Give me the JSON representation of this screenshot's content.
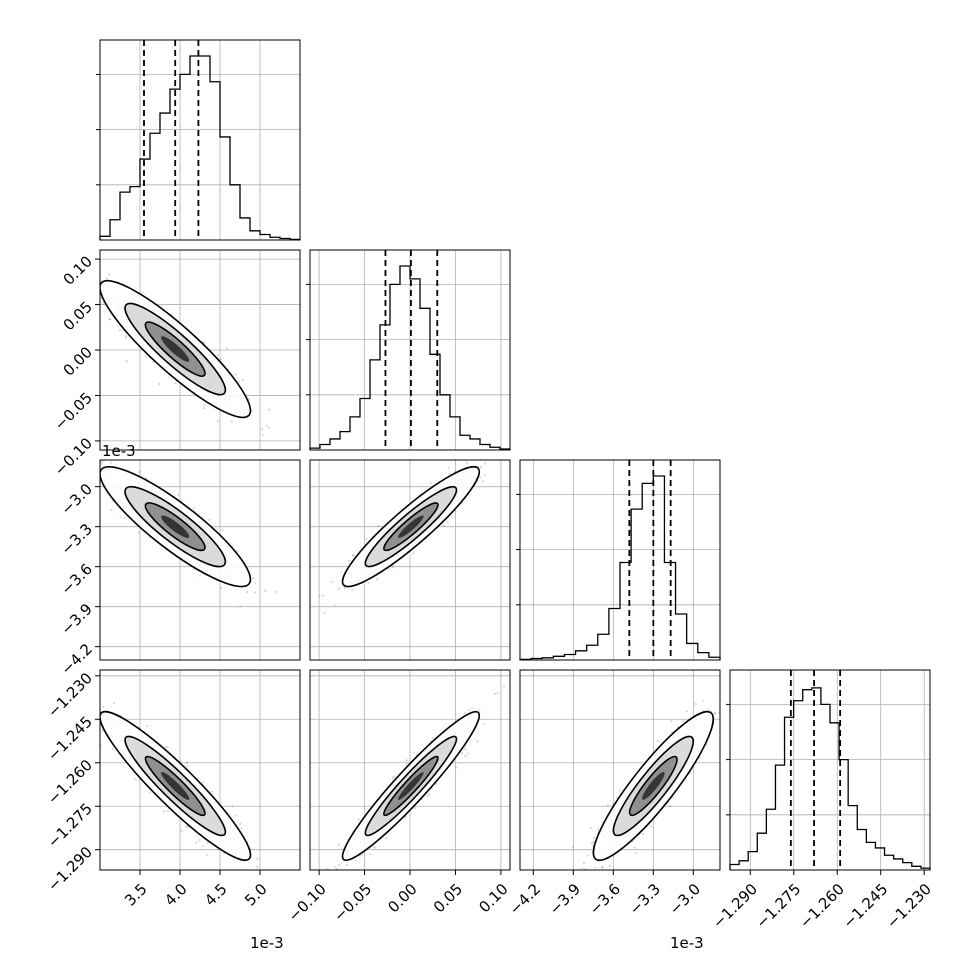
{
  "chart_data": {
    "type": "corner",
    "title": "",
    "grid": true,
    "parameters": [
      {
        "range": [
          3.0,
          5.5
        ],
        "scale": "1e-3",
        "offset_label": "1e-3",
        "ticks": [
          3.5,
          4.0,
          4.5,
          5.0
        ],
        "tick_labels": [
          "3.5",
          "4.0",
          "4.5",
          "5.0"
        ],
        "quantiles": [
          3.55,
          3.94,
          4.23
        ],
        "hist": [
          0.02,
          0.11,
          0.26,
          0.29,
          0.44,
          0.58,
          0.69,
          0.82,
          0.9,
          1.0,
          1.0,
          0.86,
          0.56,
          0.3,
          0.12,
          0.05,
          0.03,
          0.015,
          0.008,
          0.003
        ]
      },
      {
        "range": [
          -0.11,
          0.11
        ],
        "scale": "",
        "ticks": [
          -0.1,
          -0.05,
          0.0,
          0.05,
          0.1
        ],
        "tick_labels": [
          "−0.10",
          "−0.05",
          "0.00",
          "0.05",
          "0.10"
        ],
        "quantiles": [
          -0.027,
          0.001,
          0.03
        ],
        "hist": [
          0.01,
          0.03,
          0.06,
          0.1,
          0.18,
          0.28,
          0.49,
          0.68,
          0.9,
          1.0,
          0.93,
          0.77,
          0.52,
          0.3,
          0.18,
          0.08,
          0.06,
          0.03,
          0.015,
          0.005
        ]
      },
      {
        "range": [
          -4.3,
          -2.8
        ],
        "scale": "1e-3",
        "offset_label": "1e-3",
        "ticks": [
          -4.2,
          -3.9,
          -3.6,
          -3.3,
          -3.0
        ],
        "tick_labels": [
          "−4.2",
          "−3.9",
          "−3.6",
          "−3.3",
          "−3.0"
        ],
        "quantiles": [
          -3.48,
          -3.3,
          -3.17
        ],
        "hist": [
          0.003,
          0.008,
          0.012,
          0.02,
          0.03,
          0.05,
          0.08,
          0.14,
          0.28,
          0.53,
          0.82,
          0.96,
          1.0,
          0.53,
          0.25,
          0.09,
          0.04,
          0.015
        ]
      },
      {
        "range": [
          -1.297,
          -1.228
        ],
        "scale": "",
        "ticks": [
          -1.29,
          -1.275,
          -1.26,
          -1.245,
          -1.23
        ],
        "tick_labels": [
          "−1.290",
          "−1.275",
          "−1.260",
          "−1.245",
          "−1.230"
        ],
        "quantiles": [
          -1.276,
          -1.268,
          -1.259
        ],
        "hist": [
          0.03,
          0.05,
          0.1,
          0.2,
          0.33,
          0.57,
          0.83,
          0.92,
          0.98,
          0.99,
          0.9,
          0.8,
          0.6,
          0.35,
          0.22,
          0.15,
          0.12,
          0.08,
          0.06,
          0.04,
          0.02,
          0.01
        ]
      }
    ],
    "pairs": [
      {
        "row": 1,
        "col": 0,
        "correlation": -0.9
      },
      {
        "row": 2,
        "col": 0,
        "correlation": -0.88
      },
      {
        "row": 2,
        "col": 1,
        "correlation": 0.92
      },
      {
        "row": 3,
        "col": 0,
        "correlation": -0.93
      },
      {
        "row": 3,
        "col": 1,
        "correlation": 0.95
      },
      {
        "row": 3,
        "col": 2,
        "correlation": 0.9
      }
    ]
  }
}
